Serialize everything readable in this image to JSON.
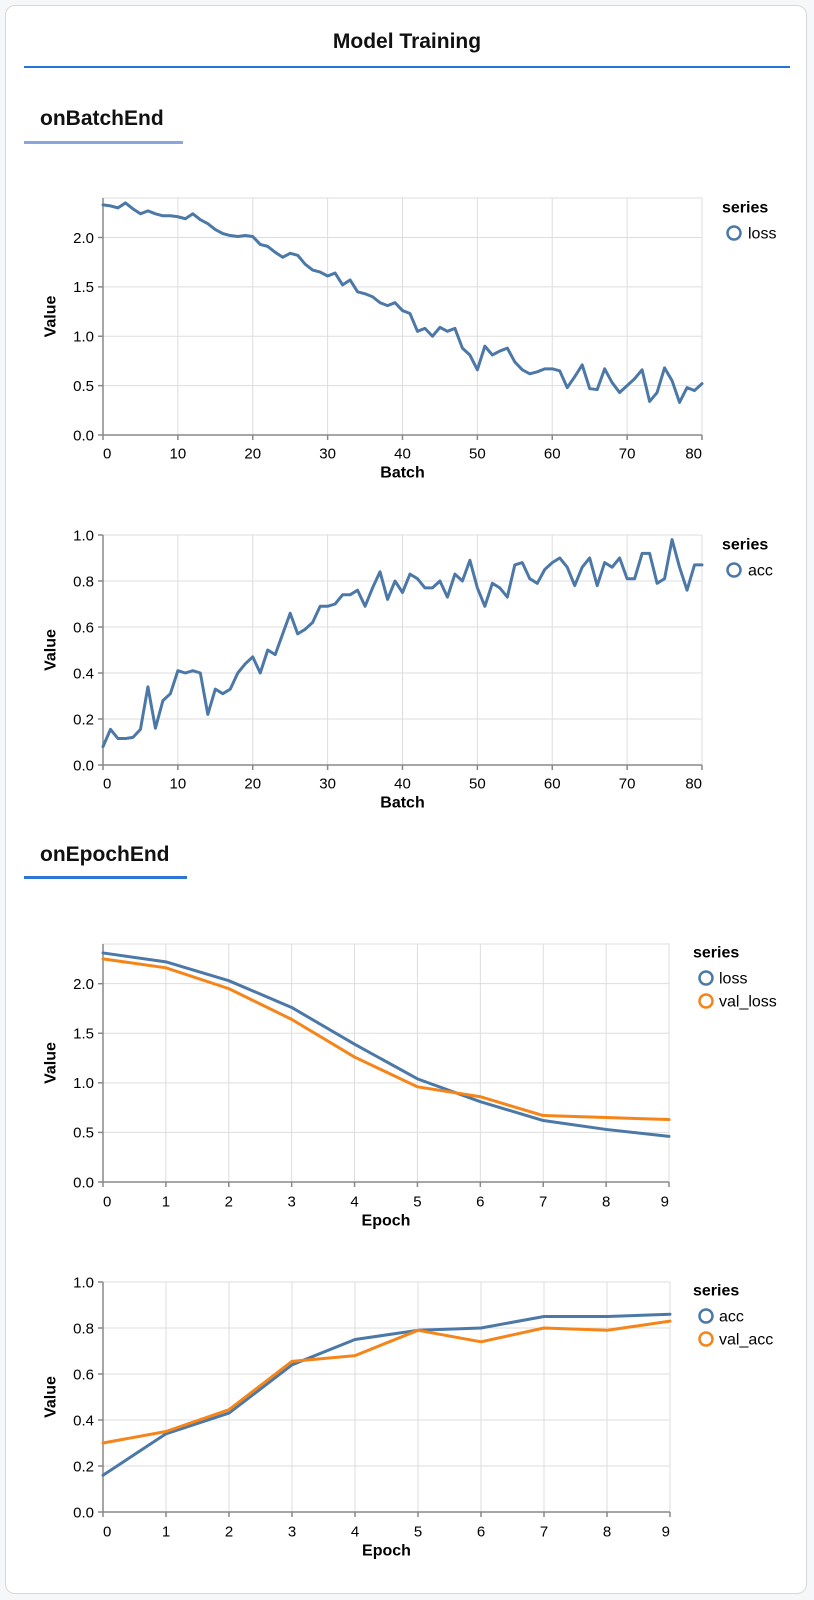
{
  "page": {
    "title": "Model Training"
  },
  "sections": [
    {
      "label": "onBatchEnd"
    },
    {
      "label": "onEpochEnd"
    }
  ],
  "colors": {
    "series_blue": "#4c78a8",
    "series_orange": "#f58518",
    "title_rule": "#2277d6",
    "batch_section_rule": "#8aa6de",
    "epoch_section_rule": "#2e75d4",
    "grid": "#dddddd",
    "axis_domain": "#888888",
    "label_text": "#000000"
  },
  "chart_data": [
    {
      "type": "line",
      "section": "onBatchEnd",
      "xlabel": "Batch",
      "ylabel": "Value",
      "legend_title": "series",
      "legend_position": "right",
      "grid": true,
      "x_domain": [
        0,
        80
      ],
      "x_ticks": [
        0,
        10,
        20,
        30,
        40,
        50,
        60,
        70,
        80
      ],
      "y_domain": [
        0,
        2.4
      ],
      "y_ticks": [
        0,
        0.5,
        1,
        1.5,
        2
      ],
      "series": [
        {
          "name": "loss",
          "color": "#4c78a8",
          "values": [
            2.33,
            2.32,
            2.3,
            2.35,
            2.29,
            2.24,
            2.27,
            2.24,
            2.22,
            2.22,
            2.21,
            2.19,
            2.24,
            2.18,
            2.14,
            2.08,
            2.04,
            2.02,
            2.01,
            2.02,
            2.01,
            1.93,
            1.91,
            1.85,
            1.8,
            1.84,
            1.82,
            1.73,
            1.67,
            1.65,
            1.61,
            1.64,
            1.52,
            1.57,
            1.45,
            1.43,
            1.4,
            1.34,
            1.31,
            1.34,
            1.26,
            1.23,
            1.05,
            1.08,
            1.0,
            1.09,
            1.05,
            1.08,
            0.88,
            0.81,
            0.66,
            0.9,
            0.81,
            0.85,
            0.88,
            0.74,
            0.66,
            0.62,
            0.64,
            0.67,
            0.67,
            0.65,
            0.48,
            0.59,
            0.71,
            0.47,
            0.46,
            0.67,
            0.53,
            0.43,
            0.5,
            0.57,
            0.66,
            0.34,
            0.43,
            0.68,
            0.55,
            0.33,
            0.48,
            0.45,
            0.52
          ]
        }
      ]
    },
    {
      "type": "line",
      "section": "onBatchEnd",
      "xlabel": "Batch",
      "ylabel": "Value",
      "legend_title": "series",
      "legend_position": "right",
      "grid": true,
      "x_domain": [
        0,
        80
      ],
      "x_ticks": [
        0,
        10,
        20,
        30,
        40,
        50,
        60,
        70,
        80
      ],
      "y_domain": [
        0,
        1.0
      ],
      "y_ticks": [
        0,
        0.2,
        0.4,
        0.6,
        0.8,
        1.0
      ],
      "series": [
        {
          "name": "acc",
          "color": "#4c78a8",
          "values": [
            0.08,
            0.155,
            0.115,
            0.115,
            0.12,
            0.155,
            0.34,
            0.16,
            0.28,
            0.31,
            0.41,
            0.4,
            0.41,
            0.4,
            0.22,
            0.33,
            0.31,
            0.33,
            0.4,
            0.44,
            0.47,
            0.4,
            0.5,
            0.48,
            0.57,
            0.66,
            0.57,
            0.59,
            0.62,
            0.69,
            0.69,
            0.7,
            0.74,
            0.74,
            0.76,
            0.69,
            0.77,
            0.84,
            0.72,
            0.8,
            0.75,
            0.83,
            0.81,
            0.77,
            0.77,
            0.8,
            0.73,
            0.83,
            0.8,
            0.89,
            0.77,
            0.69,
            0.79,
            0.77,
            0.73,
            0.87,
            0.88,
            0.81,
            0.79,
            0.85,
            0.88,
            0.9,
            0.86,
            0.78,
            0.86,
            0.9,
            0.78,
            0.88,
            0.86,
            0.9,
            0.81,
            0.81,
            0.92,
            0.92,
            0.79,
            0.81,
            0.98,
            0.86,
            0.76,
            0.87,
            0.87
          ]
        }
      ]
    },
    {
      "type": "line",
      "section": "onEpochEnd",
      "xlabel": "Epoch",
      "ylabel": "Value",
      "legend_title": "series",
      "legend_position": "right",
      "grid": true,
      "x_domain": [
        0,
        9
      ],
      "x_ticks": [
        0,
        1,
        2,
        3,
        4,
        5,
        6,
        7,
        8,
        9
      ],
      "y_domain": [
        0,
        2.4
      ],
      "y_ticks": [
        0,
        0.5,
        1,
        1.5,
        2
      ],
      "series": [
        {
          "name": "loss",
          "color": "#4c78a8",
          "values": [
            2.31,
            2.22,
            2.03,
            1.76,
            1.39,
            1.04,
            0.81,
            0.62,
            0.53,
            0.46
          ]
        },
        {
          "name": "val_loss",
          "color": "#f58518",
          "values": [
            2.25,
            2.16,
            1.95,
            1.64,
            1.26,
            0.96,
            0.86,
            0.67,
            0.65,
            0.63
          ]
        }
      ]
    },
    {
      "type": "line",
      "section": "onEpochEnd",
      "xlabel": "Epoch",
      "ylabel": "Value",
      "legend_title": "series",
      "legend_position": "right",
      "grid": true,
      "x_domain": [
        0,
        9
      ],
      "x_ticks": [
        0,
        1,
        2,
        3,
        4,
        5,
        6,
        7,
        8,
        9
      ],
      "y_domain": [
        0,
        1.0
      ],
      "y_ticks": [
        0,
        0.2,
        0.4,
        0.6,
        0.8,
        1.0
      ],
      "series": [
        {
          "name": "acc",
          "color": "#4c78a8",
          "values": [
            0.16,
            0.34,
            0.43,
            0.64,
            0.75,
            0.79,
            0.8,
            0.85,
            0.85,
            0.86
          ]
        },
        {
          "name": "val_acc",
          "color": "#f58518",
          "values": [
            0.3,
            0.35,
            0.445,
            0.655,
            0.68,
            0.79,
            0.74,
            0.8,
            0.79,
            0.83
          ]
        }
      ]
    }
  ]
}
